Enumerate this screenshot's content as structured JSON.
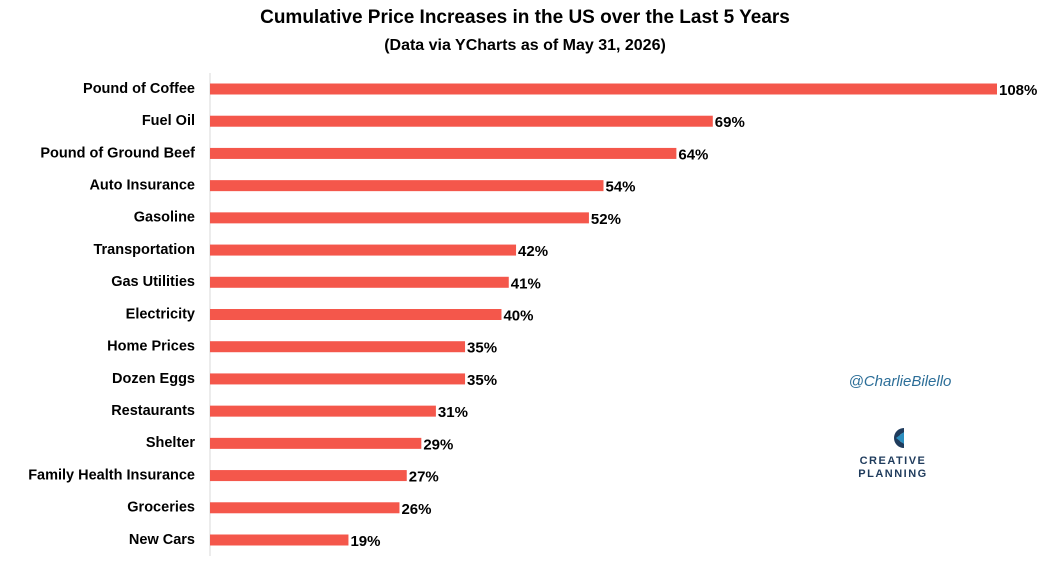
{
  "chart_data": {
    "type": "bar",
    "orientation": "horizontal",
    "title": "Cumulative Price Increases in the US over the Last 5 Years",
    "subtitle": "(Data via YCharts as of May 31, 2026)",
    "categories": [
      "Pound of Coffee",
      "Fuel Oil",
      "Pound of Ground Beef",
      "Auto Insurance",
      "Gasoline",
      "Transportation",
      "Gas Utilities",
      "Electricity",
      "Home Prices",
      "Dozen Eggs",
      "Restaurants",
      "Shelter",
      "Family Health Insurance",
      "Groceries",
      "New Cars"
    ],
    "values": [
      108,
      69,
      64,
      54,
      52,
      42,
      41,
      40,
      35,
      35,
      31,
      29,
      27,
      26,
      19
    ],
    "value_labels": [
      "108%",
      "69%",
      "64%",
      "54%",
      "52%",
      "42%",
      "41%",
      "40%",
      "35%",
      "35%",
      "31%",
      "29%",
      "27%",
      "26%",
      "19%"
    ],
    "color": "#f4574b",
    "annotations": [
      "@CharlieBilello",
      "CREATIVE",
      "PLANNING"
    ]
  }
}
